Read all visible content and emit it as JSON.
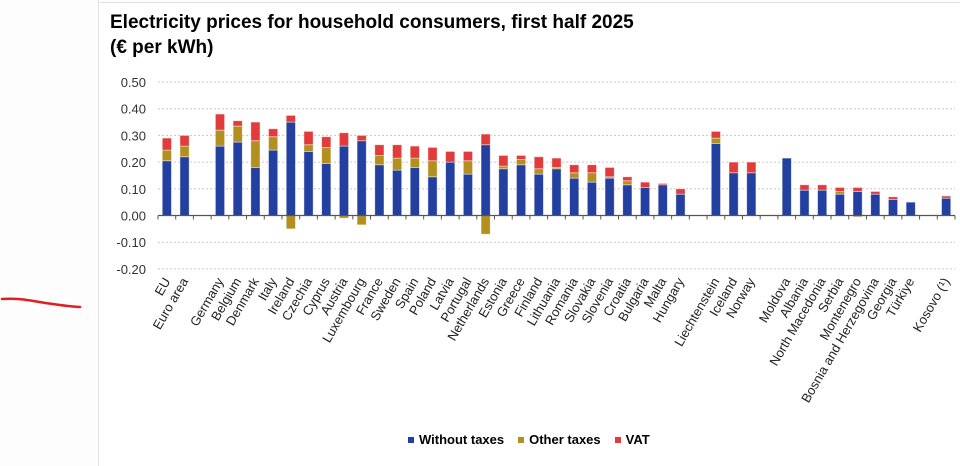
{
  "chart_data": {
    "type": "bar",
    "stacked": true,
    "title": "Electricity prices for household consumers, first half 2025",
    "subtitle": "(€ per kWh)",
    "xlabel": "",
    "ylabel": "",
    "ylim": [
      -0.2,
      0.5
    ],
    "yticks": [
      "0.50",
      "0.40",
      "0.30",
      "0.20",
      "0.10",
      "0.00",
      "-0.10",
      "-0.20"
    ],
    "ytick_values": [
      0.5,
      0.4,
      0.3,
      0.2,
      0.1,
      0.0,
      -0.1,
      -0.2
    ],
    "grid": true,
    "legend_position": "bottom",
    "categories": [
      "EU",
      "Euro area",
      "",
      "Germany",
      "Belgium",
      "Denmark",
      "Italy",
      "Ireland",
      "Czechia",
      "Cyprus",
      "Austria",
      "Luxembourg",
      "France",
      "Sweden",
      "Spain",
      "Poland",
      "Latvia",
      "Portugal",
      "Netherlands",
      "Estonia",
      "Greece",
      "Finland",
      "Lithuania",
      "Romania",
      "Slovakia",
      "Slovenia",
      "Croatia",
      "Bulgaria",
      "Malta",
      "Hungary",
      "",
      "Liechtenstein",
      "Iceland",
      "Norway",
      "",
      "Moldova",
      "Albania",
      "North Macedonia",
      "Serbia",
      "Montenegro",
      "Bosnia and Herzegovina",
      "Georgia",
      "Türkiye",
      "",
      "Kosovo (¹)"
    ],
    "series": [
      {
        "name": "Without taxes",
        "color": "#2340a0",
        "values": [
          0.205,
          0.22,
          null,
          0.26,
          0.275,
          0.18,
          0.245,
          0.35,
          0.24,
          0.195,
          0.26,
          0.28,
          0.19,
          0.17,
          0.18,
          0.145,
          0.2,
          0.155,
          0.265,
          0.175,
          0.19,
          0.155,
          0.175,
          0.14,
          0.125,
          0.14,
          0.115,
          0.105,
          0.115,
          0.08,
          null,
          0.27,
          0.16,
          0.16,
          null,
          0.215,
          0.095,
          0.095,
          0.08,
          0.09,
          0.08,
          0.06,
          0.05,
          null,
          0.065
        ]
      },
      {
        "name": "Other taxes",
        "color": "#b28f1e",
        "values": [
          0.04,
          0.04,
          null,
          0.06,
          0.06,
          0.1,
          0.05,
          -0.05,
          0.025,
          0.06,
          -0.01,
          -0.035,
          0.035,
          0.045,
          0.035,
          0.06,
          0.0,
          0.05,
          -0.07,
          0.01,
          0.02,
          0.02,
          0.005,
          0.02,
          0.035,
          0.005,
          0.015,
          0.0,
          0.0,
          0.0,
          null,
          0.02,
          0.0,
          0.0,
          null,
          0.0,
          0.0,
          0.0,
          0.01,
          -0.005,
          0.0,
          0.0,
          0.0,
          null,
          0.0
        ]
      },
      {
        "name": "VAT",
        "color": "#e23b3b",
        "values": [
          0.045,
          0.04,
          null,
          0.06,
          0.02,
          0.07,
          0.03,
          0.025,
          0.05,
          0.04,
          0.05,
          0.02,
          0.04,
          0.05,
          0.045,
          0.05,
          0.04,
          0.035,
          0.04,
          0.04,
          0.015,
          0.045,
          0.035,
          0.03,
          0.03,
          0.035,
          0.015,
          0.02,
          0.005,
          0.02,
          null,
          0.025,
          0.04,
          0.04,
          null,
          0.0,
          0.02,
          0.02,
          0.015,
          0.015,
          0.01,
          0.01,
          0.0,
          null,
          0.008
        ]
      }
    ]
  }
}
